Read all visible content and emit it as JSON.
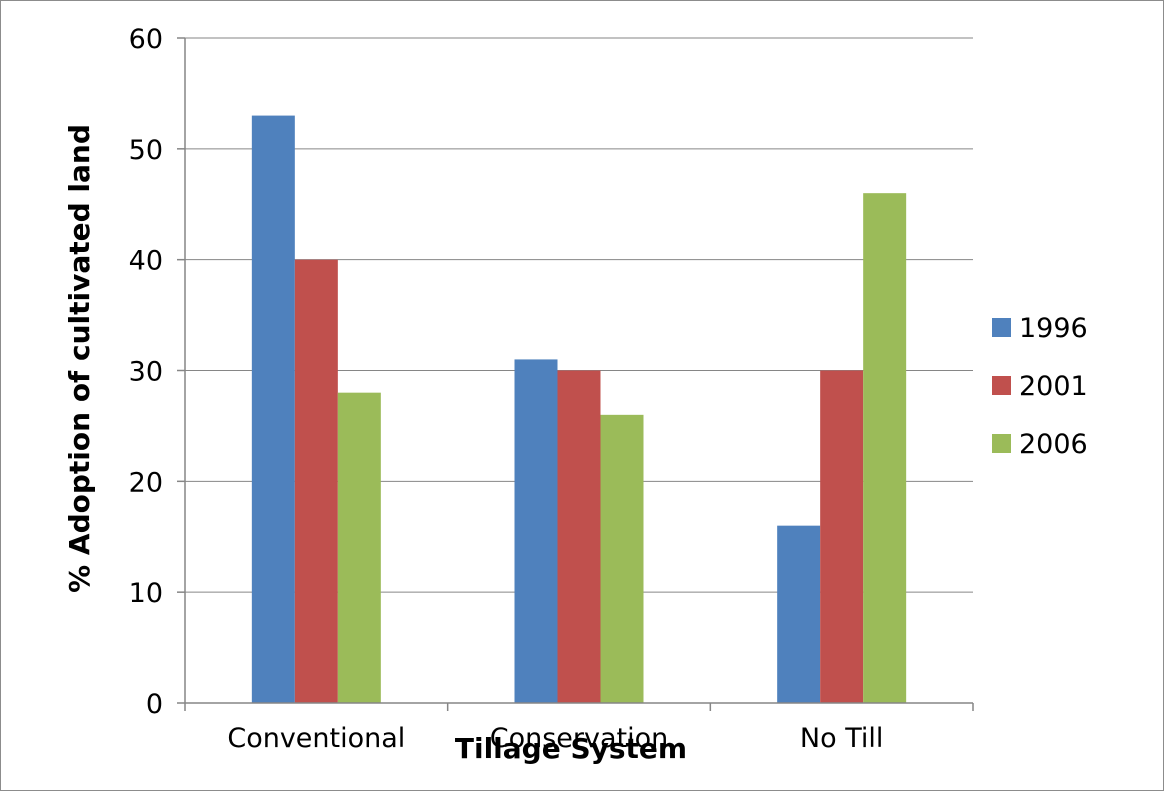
{
  "chart_data": {
    "type": "bar",
    "categories": [
      "Conventional",
      "Conservation",
      "No Till"
    ],
    "series": [
      {
        "name": "1996",
        "values": [
          53,
          31,
          16
        ]
      },
      {
        "name": "2001",
        "values": [
          40,
          30,
          30
        ]
      },
      {
        "name": "2006",
        "values": [
          28,
          26,
          46
        ]
      }
    ],
    "title": "",
    "xlabel": "Tillage System",
    "ylabel": "% Adoption of cultivated land",
    "ylim": [
      0,
      60
    ],
    "yticks": [
      0,
      10,
      20,
      30,
      40,
      50,
      60
    ],
    "grid": "horizontal",
    "legend_position": "right",
    "colors": [
      "#4f81bd",
      "#c0504d",
      "#9bbb59"
    ]
  }
}
